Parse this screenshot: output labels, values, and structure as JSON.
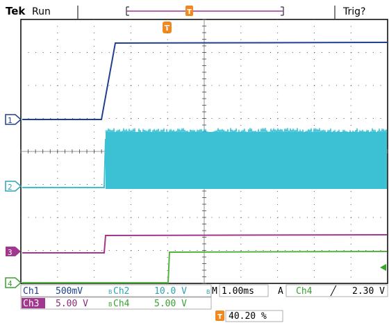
{
  "header": {
    "brand": "Tek",
    "acq_state": "Run",
    "trigger_status": "Trig?"
  },
  "channels": [
    {
      "id": "1",
      "label": "Ch1",
      "scale": "500mV",
      "color": "#1f3f8f"
    },
    {
      "id": "2",
      "label": "Ch2",
      "scale": "10.0 V",
      "color": "#3cc0d4"
    },
    {
      "id": "3",
      "label": "Ch3",
      "scale": "5.00 V",
      "color": "#a2378f"
    },
    {
      "id": "4",
      "label": "Ch4",
      "scale": "5.00 V",
      "color": "#52b43c"
    }
  ],
  "bandwidth_mark": "B",
  "timebase": {
    "prefix": "M",
    "value": "1.00ms"
  },
  "trigger": {
    "mode": "A",
    "source": "Ch4",
    "slope_symbol": "╱",
    "level": "2.30 V"
  },
  "trigger_position": {
    "marker": "T",
    "value": "40.20 %"
  },
  "icons": {
    "trigger_marker": "trigger-T-icon",
    "trigger_level": "trigger-level-arrow-icon",
    "slope": "rising-slope-icon"
  }
}
